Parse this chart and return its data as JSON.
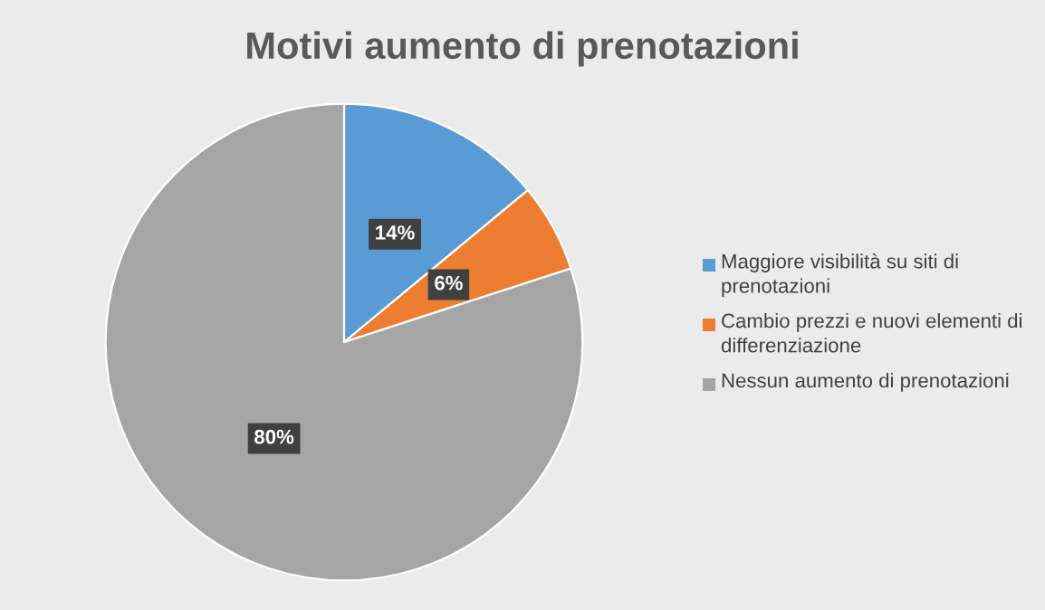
{
  "chart_data": {
    "type": "pie",
    "title": "Motivi aumento di prenotazioni",
    "categories": [
      "Maggiore visibilità su siti di prenotazioni",
      "Cambio prezzi e nuovi elementi di differenziazione",
      "Nessun aumento di prenotazioni"
    ],
    "values": [
      14,
      6,
      80
    ],
    "colors": [
      "#5b9bd5",
      "#ed7d31",
      "#a5a5a5"
    ],
    "value_labels": [
      "14%",
      "6%",
      "80%"
    ],
    "legend": "right"
  }
}
